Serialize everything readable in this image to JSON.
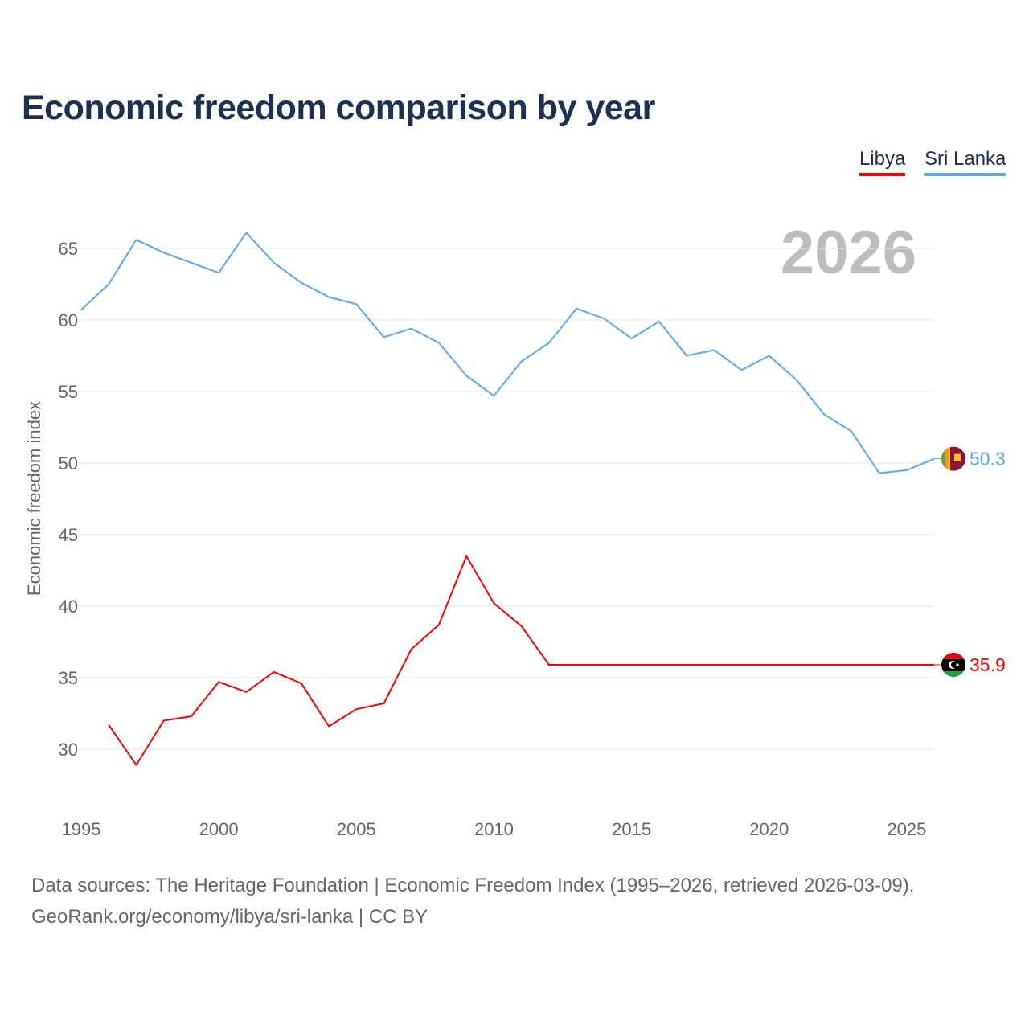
{
  "chart_data": {
    "type": "line",
    "title": "Economic freedom comparison by year",
    "ylabel": "Economic freedom index",
    "xlabel": "",
    "year_watermark": "2026",
    "ylim": [
      26,
      68
    ],
    "xlim": [
      1995,
      2026
    ],
    "yticks": [
      30,
      35,
      40,
      45,
      50,
      55,
      60,
      65
    ],
    "xticks": [
      1995,
      2000,
      2005,
      2010,
      2015,
      2020,
      2025
    ],
    "grid": true,
    "legend_position": "top-right",
    "series": [
      {
        "name": "Libya",
        "color": "#ff0000",
        "end_label": "35.9",
        "x": [
          1996,
          1997,
          1998,
          1999,
          2000,
          2001,
          2002,
          2003,
          2004,
          2005,
          2006,
          2007,
          2008,
          2009,
          2010,
          2011,
          2012,
          2013,
          2014,
          2015,
          2016,
          2017,
          2018,
          2019,
          2020,
          2021,
          2022,
          2023,
          2024,
          2025,
          2026
        ],
        "values": [
          31.7,
          28.9,
          32.0,
          32.3,
          34.7,
          34.0,
          35.4,
          34.6,
          31.6,
          32.8,
          33.2,
          37.0,
          38.7,
          43.5,
          40.2,
          38.6,
          35.9,
          35.9,
          35.9,
          35.9,
          35.9,
          35.9,
          35.9,
          35.9,
          35.9,
          35.9,
          35.9,
          35.9,
          35.9,
          35.9,
          35.9
        ]
      },
      {
        "name": "Sri Lanka",
        "color": "#5ba8ee",
        "end_label": "50.3",
        "x": [
          1995,
          1996,
          1997,
          1998,
          1999,
          2000,
          2001,
          2002,
          2003,
          2004,
          2005,
          2006,
          2007,
          2008,
          2009,
          2010,
          2011,
          2012,
          2013,
          2014,
          2015,
          2016,
          2017,
          2018,
          2019,
          2020,
          2021,
          2022,
          2023,
          2024,
          2025,
          2026
        ],
        "values": [
          60.7,
          62.5,
          65.6,
          64.7,
          64.0,
          63.3,
          66.1,
          64.0,
          62.6,
          61.6,
          61.1,
          58.8,
          59.4,
          58.4,
          56.1,
          54.7,
          57.1,
          58.4,
          60.8,
          60.1,
          58.7,
          59.9,
          57.5,
          57.9,
          56.5,
          57.5,
          55.8,
          53.4,
          52.2,
          49.3,
          49.5,
          50.3
        ]
      }
    ]
  },
  "footer": {
    "line1": "Data sources: The Heritage Foundation | Economic Freedom Index (1995–2026, retrieved 2026-03-09).",
    "line2": "GeoRank.org/economy/libya/sri-lanka | CC BY"
  }
}
